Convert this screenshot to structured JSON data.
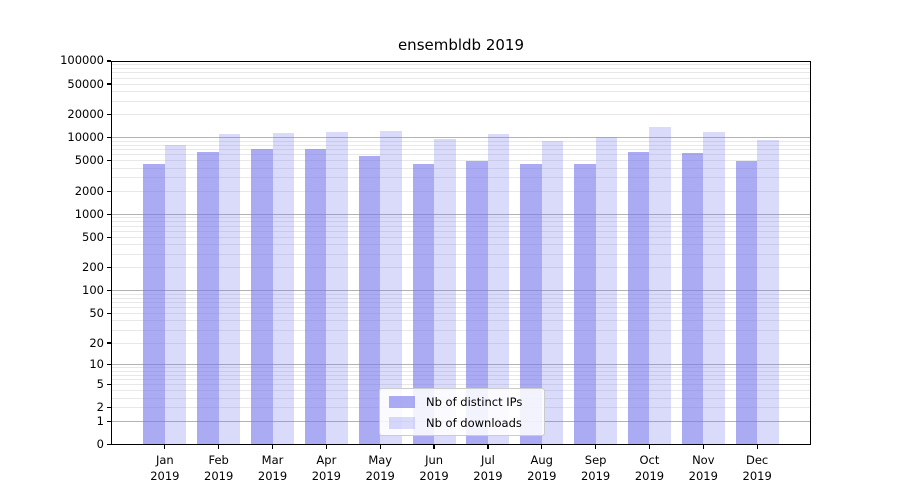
{
  "title": "ensembldb 2019",
  "chart_data": {
    "type": "bar",
    "title": "ensembldb 2019",
    "categories": [
      "Jan",
      "Feb",
      "Mar",
      "Apr",
      "May",
      "Jun",
      "Jul",
      "Aug",
      "Sep",
      "Oct",
      "Nov",
      "Dec"
    ],
    "x_year": "2019",
    "yscale": "log1p",
    "ylim": [
      0,
      100000
    ],
    "yticks": [
      0,
      1,
      2,
      5,
      10,
      20,
      50,
      100,
      200,
      500,
      1000,
      2000,
      5000,
      10000,
      20000,
      50000,
      100000
    ],
    "grid": {
      "major_at": [
        1,
        10,
        100,
        1000,
        10000
      ],
      "minor": "2-9 per decade",
      "major_color": "#b3b3b3",
      "minor_color": "#e8e8e8"
    },
    "legend_position": "lower center",
    "series": [
      {
        "name": "Nb of distinct IPs",
        "color": "rgba(119,119,238,0.62)",
        "values": [
          4600,
          6600,
          7100,
          7100,
          5800,
          4600,
          5000,
          4500,
          4500,
          6500,
          6300,
          5000
        ]
      },
      {
        "name": "Nb of downloads",
        "color": "rgba(119,119,238,0.27)",
        "values": [
          8000,
          11200,
          11600,
          11800,
          12200,
          9700,
          11200,
          9000,
          10100,
          13900,
          11900,
          9300
        ]
      }
    ]
  },
  "colors": {
    "spine": "#000000",
    "text": "#000000",
    "background": "#ffffff"
  }
}
